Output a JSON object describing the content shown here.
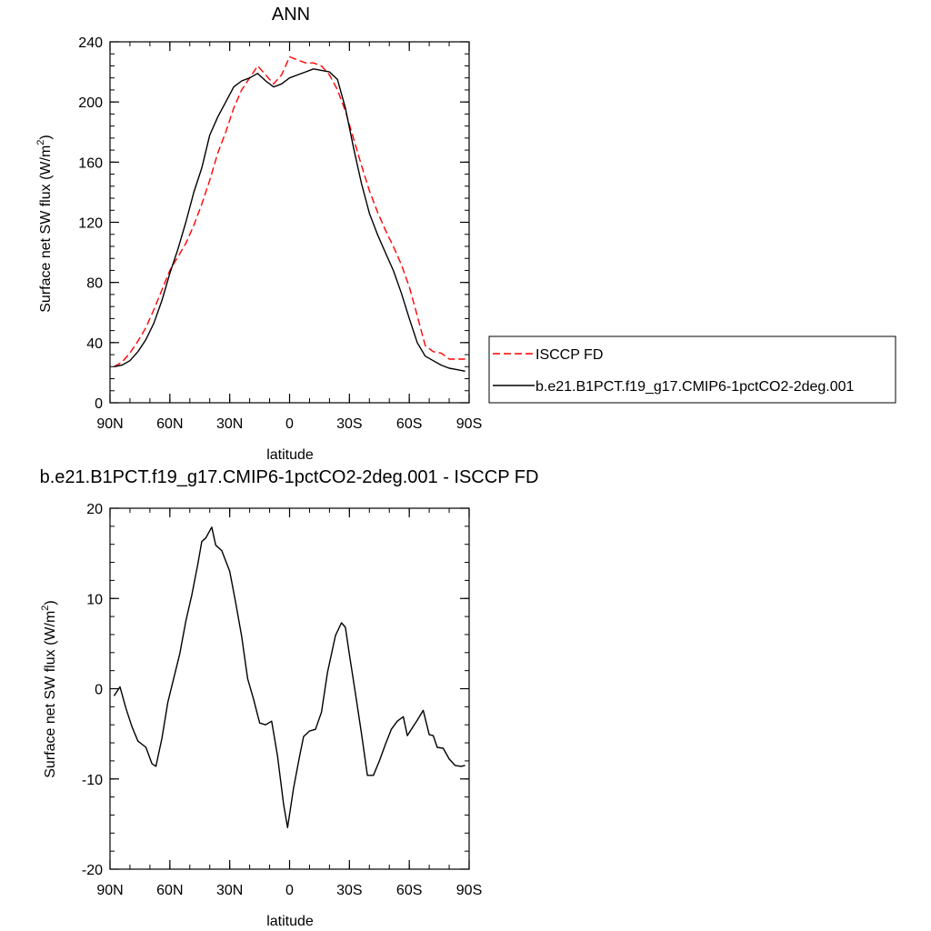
{
  "chart_data": [
    {
      "type": "line",
      "title": "ANN",
      "xlabel": "latitude",
      "ylabel": "Surface net SW flux (W/m",
      "ylabel_sup": "2",
      "ylabel_close": ")",
      "xlim": [
        90,
        -90
      ],
      "ylim": [
        0,
        240
      ],
      "xticks": [
        90,
        60,
        30,
        0,
        -30,
        -60,
        -90
      ],
      "xtick_labels": [
        "90N",
        "60N",
        "30N",
        "0",
        "30S",
        "60S",
        "90S"
      ],
      "yticks": [
        0,
        40,
        80,
        120,
        160,
        200,
        240
      ],
      "ytick_labels": [
        "0",
        "40",
        "80",
        "120",
        "160",
        "200",
        "240"
      ],
      "grid": false,
      "legend": "right",
      "series": [
        {
          "name": "ISCCP FD",
          "color": "#ff0000",
          "dash": true,
          "x": [
            88,
            84,
            80,
            76,
            72,
            68,
            64,
            60,
            56,
            52,
            48,
            44,
            40,
            36,
            32,
            28,
            24,
            20,
            16,
            12,
            8,
            4,
            0,
            -4,
            -8,
            -12,
            -16,
            -20,
            -24,
            -28,
            -32,
            -36,
            -40,
            -44,
            -48,
            -52,
            -56,
            -60,
            -64,
            -68,
            -72,
            -76,
            -80,
            -84,
            -88
          ],
          "y": [
            24,
            27,
            33,
            41,
            50,
            62,
            75,
            88,
            97,
            106,
            118,
            132,
            148,
            166,
            180,
            196,
            208,
            216,
            224,
            218,
            212,
            218,
            230,
            228,
            226,
            226,
            224,
            218,
            208,
            194,
            176,
            158,
            141,
            127,
            115,
            104,
            92,
            77,
            58,
            38,
            34,
            33,
            29,
            29,
            29
          ]
        },
        {
          "name": "b.e21.B1PCT.f19_g17.CMIP6-1pctCO2-2deg.001",
          "color": "#000000",
          "dash": false,
          "x": [
            88,
            84,
            80,
            76,
            72,
            68,
            64,
            60,
            56,
            52,
            48,
            44,
            40,
            36,
            32,
            28,
            24,
            20,
            16,
            12,
            8,
            4,
            0,
            -4,
            -8,
            -12,
            -16,
            -20,
            -24,
            -28,
            -32,
            -36,
            -40,
            -44,
            -48,
            -52,
            -56,
            -60,
            -64,
            -68,
            -72,
            -76,
            -80,
            -84,
            -88
          ],
          "y": [
            24,
            25,
            28,
            34,
            42,
            53,
            68,
            86,
            102,
            120,
            140,
            156,
            178,
            190,
            200,
            210,
            214,
            216,
            219,
            214,
            210,
            212,
            216,
            218,
            220,
            222,
            221,
            220,
            215,
            196,
            170,
            146,
            126,
            112,
            100,
            88,
            73,
            56,
            40,
            31,
            28,
            25,
            23,
            22,
            21
          ]
        }
      ]
    },
    {
      "type": "line",
      "title": "b.e21.B1PCT.f19_g17.CMIP6-1pctCO2-2deg.001 - ISCCP FD",
      "xlabel": "latitude",
      "ylabel": "Surface net SW flux (W/m",
      "ylabel_sup": "2",
      "ylabel_close": ")",
      "xlim": [
        90,
        -90
      ],
      "ylim": [
        -20,
        20
      ],
      "xticks": [
        90,
        60,
        30,
        0,
        -30,
        -60,
        -90
      ],
      "xtick_labels": [
        "90N",
        "60N",
        "30N",
        "0",
        "30S",
        "60S",
        "90S"
      ],
      "yticks": [
        -20,
        -10,
        0,
        10,
        20
      ],
      "ytick_labels": [
        "-20",
        "-10",
        "0",
        "10",
        "20"
      ],
      "grid": false,
      "legend": "none",
      "series": [
        {
          "color": "#000000",
          "dash": false,
          "x": [
            88,
            85,
            82,
            79,
            76,
            72,
            69,
            67,
            64,
            61,
            58,
            55,
            52,
            49,
            46,
            44,
            42,
            39,
            37,
            34,
            30,
            27,
            24,
            21,
            18,
            15,
            12,
            9,
            6,
            3,
            1,
            -2,
            -5,
            -7,
            -10,
            -13,
            -16,
            -19,
            -23,
            -26,
            -28,
            -30,
            -33,
            -36,
            -39,
            -42,
            -45,
            -48,
            -51,
            -54,
            -57,
            -59,
            -61,
            -64,
            -67,
            -70,
            -72,
            -74,
            -77,
            -80,
            -83,
            -86,
            -88
          ],
          "y": [
            -0.8,
            0.2,
            -2.2,
            -4.2,
            -5.8,
            -6.5,
            -8.3,
            -8.6,
            -5.5,
            -1.5,
            1.2,
            3.9,
            7.5,
            10.4,
            13.8,
            16.3,
            16.7,
            17.9,
            15.9,
            15.3,
            13.0,
            9.5,
            5.8,
            1.1,
            -1.2,
            -3.8,
            -4.0,
            -3.6,
            -7.5,
            -12.8,
            -15.4,
            -11.0,
            -7.5,
            -5.3,
            -4.7,
            -4.5,
            -2.6,
            1.8,
            5.9,
            7.3,
            6.8,
            3.8,
            -0.5,
            -4.9,
            -9.6,
            -9.6,
            -8.0,
            -6.2,
            -4.5,
            -3.6,
            -3.1,
            -5.2,
            -4.5,
            -3.5,
            -2.4,
            -5.1,
            -5.2,
            -6.5,
            -6.6,
            -7.8,
            -8.5,
            -8.6,
            -8.5
          ]
        }
      ]
    }
  ]
}
